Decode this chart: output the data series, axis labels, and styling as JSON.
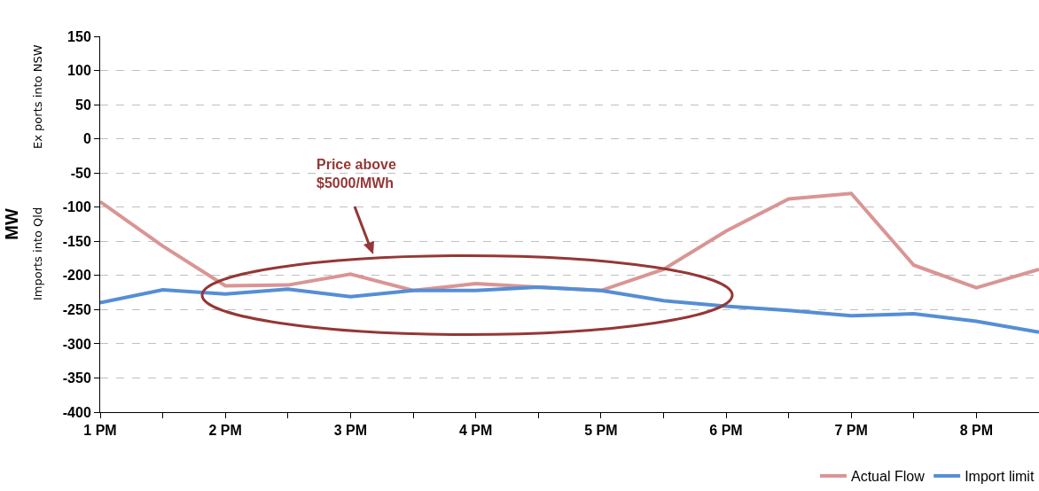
{
  "chart_data": {
    "type": "line",
    "ylabel": "MW",
    "annotations": [
      "Ex ports into NSW",
      "Imports into Qld",
      "Price above\n$5000/MWh"
    ],
    "categories": [
      "1 PM",
      null,
      "2 PM",
      null,
      "3 PM",
      null,
      "4 PM",
      null,
      "5 PM",
      null,
      "6 PM",
      null,
      "7 PM",
      null,
      "8 PM",
      null
    ],
    "series": [
      {
        "name": "Actual Flow",
        "color": "#d99594",
        "values": [
          -92,
          -157,
          -215,
          -214,
          -198,
          -222,
          -212,
          -217,
          -222,
          -191,
          -135,
          -88,
          -80,
          -185,
          -218,
          -191
        ]
      },
      {
        "name": "Import limit",
        "color": "#558ed5",
        "values": [
          -240,
          -221,
          -227,
          -220,
          -231,
          -222,
          -222,
          -217,
          -222,
          -237,
          -245,
          -251,
          -259,
          -256,
          -267,
          -283
        ]
      }
    ],
    "ylim": [
      -400,
      150
    ],
    "yticks": [
      -400,
      -350,
      -300,
      -250,
      -200,
      -150,
      -100,
      -50,
      0,
      50,
      100,
      150
    ],
    "grid": "y",
    "legend": "bottom right",
    "marker": "none",
    "line_style": "solid"
  }
}
